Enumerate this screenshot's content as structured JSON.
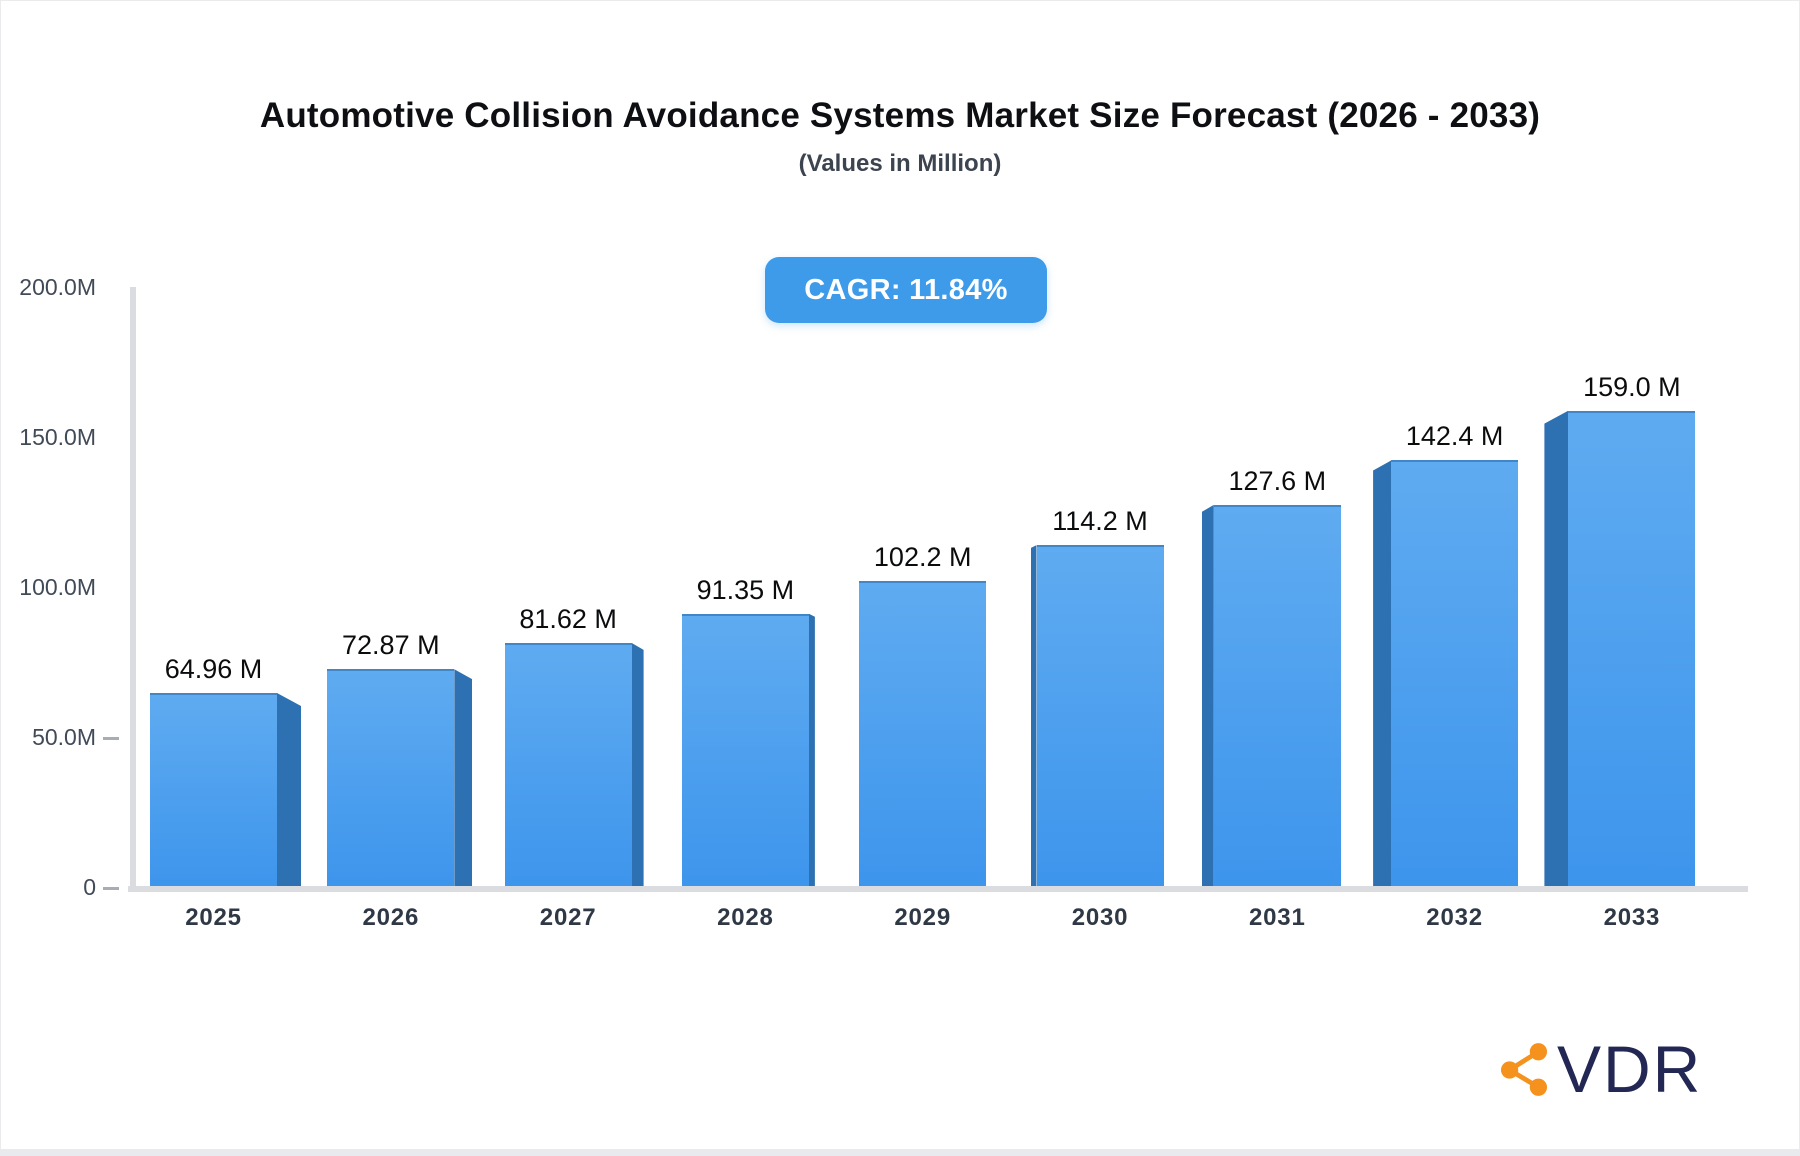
{
  "header": {
    "title": "Automotive Collision Avoidance Systems Market Size Forecast (2026 - 2033)",
    "subtitle": "(Values in Million)"
  },
  "cagr_badge": {
    "label": "CAGR: 11.84%",
    "background_color": "#3d9bea",
    "text_color": "#ffffff"
  },
  "chart_data": {
    "type": "bar",
    "title": "Automotive Collision Avoidance Systems Market Size Forecast (2026 - 2033)",
    "subtitle": "(Values in Million)",
    "categories": [
      "2025",
      "2026",
      "2027",
      "2028",
      "2029",
      "2030",
      "2031",
      "2032",
      "2033"
    ],
    "values": [
      64.96,
      72.87,
      81.62,
      91.35,
      102.2,
      114.2,
      127.6,
      142.4,
      159.0
    ],
    "value_labels": [
      "64.96 M",
      "72.87 M",
      "81.62 M",
      "91.35 M",
      "102.2 M",
      "114.2 M",
      "127.6 M",
      "142.4 M",
      "159.0 M"
    ],
    "xlabel": "",
    "ylabel": "",
    "ylim": [
      0,
      200
    ],
    "yticks": [
      0,
      50,
      100,
      150,
      200
    ],
    "ytick_labels": [
      "0",
      "50.0M",
      "100.0M",
      "150.0M",
      "200.0M"
    ],
    "grid": false,
    "legend": false,
    "style": {
      "bar_face_top": "#5fabf1",
      "bar_face_bottom": "#3d95ec",
      "bar_face_edge": "#4187c8",
      "bar_side": "#2e71b2",
      "axis_color": "#dbdce0",
      "tick_color": "#a8adb5",
      "value_label_color": "#0b0c0e",
      "x_label_color": "#2f3845",
      "y_label_color": "#414a57"
    }
  },
  "branding": {
    "logo_text": "VDR",
    "logo_text_color": "#232754",
    "icon": "share-network-icon",
    "icon_color": "#f5921e"
  }
}
